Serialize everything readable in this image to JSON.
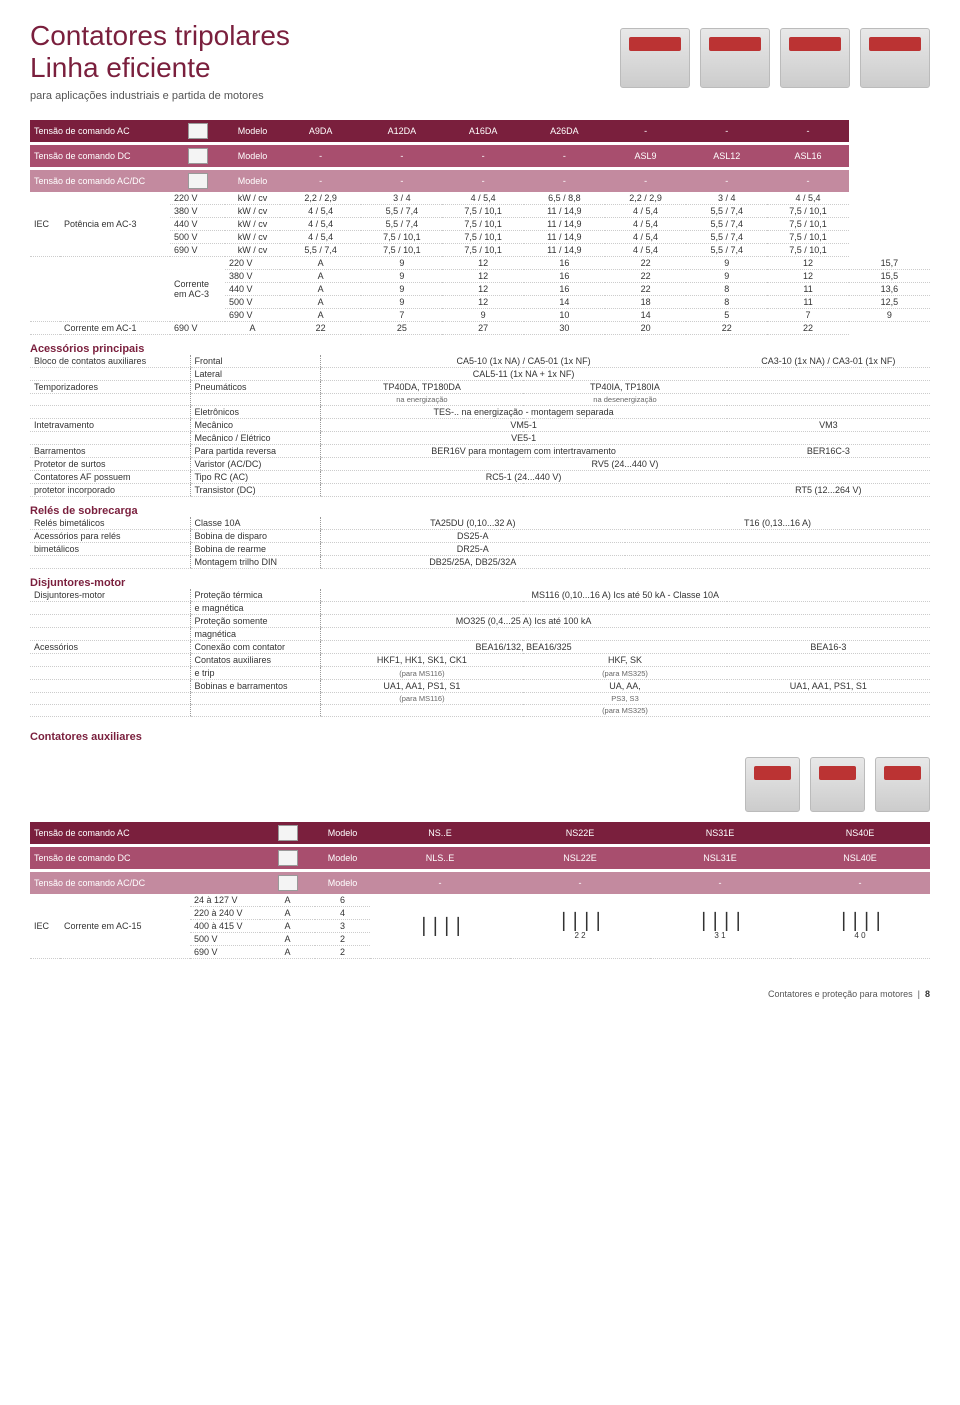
{
  "colors": {
    "brand": "#7a1f3d",
    "band_mid": "#a84e6e",
    "band_light": "#c38a9f",
    "text": "#333333",
    "background": "#ffffff",
    "border_dotted": "#cccccc"
  },
  "header": {
    "title_line1": "Contatores tripolares",
    "title_line2": "Linha eficiente",
    "subtitle": "para aplicações industriais e partida de motores"
  },
  "main_table": {
    "band_ac": {
      "label": "Tensão de comando AC",
      "col_model": "Modelo",
      "cols": [
        "A9DA",
        "A12DA",
        "A16DA",
        "A26DA",
        "-",
        "-",
        "-"
      ]
    },
    "band_dc": {
      "label": "Tensão de comando DC",
      "col_model": "Modelo",
      "cols": [
        "-",
        "-",
        "-",
        "-",
        "ASL9",
        "ASL12",
        "ASL16"
      ]
    },
    "band_acdc": {
      "label": "Tensão de comando AC/DC",
      "col_model": "Modelo",
      "cols": [
        "-",
        "-",
        "-",
        "-",
        "-",
        "-",
        "-"
      ]
    },
    "iec_label": "IEC",
    "pot_label": "Potência em AC-3",
    "pot_rows": [
      {
        "v": "220 V",
        "u": "kW / cv",
        "vals": [
          "2,2 / 2,9",
          "3 / 4",
          "4 / 5,4",
          "6,5 / 8,8",
          "2,2 / 2,9",
          "3 / 4",
          "4 / 5,4"
        ]
      },
      {
        "v": "380 V",
        "u": "kW / cv",
        "vals": [
          "4 / 5,4",
          "5,5 / 7,4",
          "7,5 / 10,1",
          "11 / 14,9",
          "4 / 5,4",
          "5,5 / 7,4",
          "7,5 / 10,1"
        ]
      },
      {
        "v": "440 V",
        "u": "kW / cv",
        "vals": [
          "4 / 5,4",
          "5,5 / 7,4",
          "7,5 / 10,1",
          "11 / 14,9",
          "4 / 5,4",
          "5,5 / 7,4",
          "7,5 / 10,1"
        ]
      },
      {
        "v": "500 V",
        "u": "kW / cv",
        "vals": [
          "4 / 5,4",
          "7,5 / 10,1",
          "7,5 / 10,1",
          "11 / 14,9",
          "4 / 5,4",
          "5,5 / 7,4",
          "7,5 / 10,1"
        ]
      },
      {
        "v": "690 V",
        "u": "kW / cv",
        "vals": [
          "5,5 / 7,4",
          "7,5 / 10,1",
          "7,5 / 10,1",
          "11 / 14,9",
          "4 / 5,4",
          "5,5 / 7,4",
          "7,5 / 10,1"
        ]
      }
    ],
    "cur3_label": "Corrente em AC-3",
    "cur3_rows": [
      {
        "v": "220 V",
        "u": "A",
        "vals": [
          "9",
          "12",
          "16",
          "22",
          "9",
          "12",
          "15,7"
        ]
      },
      {
        "v": "380 V",
        "u": "A",
        "vals": [
          "9",
          "12",
          "16",
          "22",
          "9",
          "12",
          "15,5"
        ]
      },
      {
        "v": "440 V",
        "u": "A",
        "vals": [
          "9",
          "12",
          "16",
          "22",
          "8",
          "11",
          "13,6"
        ]
      },
      {
        "v": "500 V",
        "u": "A",
        "vals": [
          "9",
          "12",
          "14",
          "18",
          "8",
          "11",
          "12,5"
        ]
      },
      {
        "v": "690 V",
        "u": "A",
        "vals": [
          "7",
          "9",
          "10",
          "14",
          "5",
          "7",
          "9"
        ]
      }
    ],
    "cur1_label": "Corrente em AC-1",
    "cur1_row": {
      "v": "690 V",
      "u": "A",
      "vals": [
        "22",
        "25",
        "27",
        "30",
        "20",
        "22",
        "22"
      ]
    }
  },
  "acessorios": {
    "title": "Acessórios principais",
    "rows": [
      {
        "name": "Bloco de contatos auxiliares",
        "spec": "Frontal",
        "left": "CA5-10 (1x NA) / CA5-01 (1x NF)",
        "right": "CA3-10 (1x NA) / CA3-01 (1x NF)"
      },
      {
        "name": "",
        "spec": "Lateral",
        "left": "CAL5-11 (1x NA + 1x NF)",
        "right": ""
      },
      {
        "name": "Temporizadores",
        "spec": "Pneumáticos",
        "left": "TP40DA, TP180DA",
        "left2": "TP40IA, TP180IA",
        "right": ""
      },
      {
        "name": "",
        "spec": "",
        "left": "na energização",
        "left2": "na desenergização",
        "right": "",
        "small": true
      },
      {
        "name": "",
        "spec": "Eletrônicos",
        "left": "TES-.. na energização - montagem separada",
        "right": ""
      },
      {
        "name": "Intetravamento",
        "spec": "Mecânico",
        "left": "VM5-1",
        "right": "VM3"
      },
      {
        "name": "",
        "spec": "Mecânico / Elétrico",
        "left": "VE5-1",
        "right": ""
      },
      {
        "name": "Barramentos",
        "spec": "Para partida reversa",
        "left": "BER16V para montagem com intertravamento",
        "right": "BER16C-3"
      },
      {
        "name": "Protetor de surtos",
        "spec": "Varistor (AC/DC)",
        "left": "",
        "left2": "RV5 (24...440 V)",
        "right": ""
      },
      {
        "name": "Contatores AF possuem",
        "spec": "Tipo RC (AC)",
        "left": "RC5-1 (24...440 V)",
        "right": ""
      },
      {
        "name": "protetor incorporado",
        "spec": "Transistor (DC)",
        "left": "",
        "right": "RT5 (12...264 V)"
      }
    ]
  },
  "reles": {
    "title": "Relés de sobrecarga",
    "rows": [
      {
        "name": "Relés bimetálicos",
        "spec": "Classe 10A",
        "left": "TA25DU (0,10...32 A)",
        "right": "T16 (0,13...16 A)"
      },
      {
        "name": "Acessórios para relés",
        "spec": "Bobina de disparo",
        "left": "DS25-A",
        "right": ""
      },
      {
        "name": "bimetálicos",
        "spec": "Bobina de rearme",
        "left": "DR25-A",
        "right": ""
      },
      {
        "name": "",
        "spec": "Montagem trilho DIN",
        "left": "DB25/25A, DB25/32A",
        "right": ""
      }
    ]
  },
  "disjuntores": {
    "title": "Disjuntores-motor",
    "rows": [
      {
        "name": "Disjuntores-motor",
        "spec": "Proteção térmica",
        "left": "",
        "left_wide": "MS116 (0,10...16 A) Ics até 50 kA - Classe 10A",
        "right": ""
      },
      {
        "name": "",
        "spec": "e magnética",
        "left": "",
        "right": ""
      },
      {
        "name": "",
        "spec": "Proteção somente",
        "left": "MO325 (0,4...25 A) Ics até 100 kA",
        "right": ""
      },
      {
        "name": "",
        "spec": "magnética",
        "left": "",
        "right": ""
      },
      {
        "name": "Acessórios",
        "spec": "Conexão com contator",
        "left": "BEA16/132, BEA16/325",
        "right": "BEA16-3"
      },
      {
        "name": "",
        "spec": "Contatos auxiliares",
        "left": "HKF1, HK1, SK1, CK1",
        "left2": "HKF, SK",
        "right": ""
      },
      {
        "name": "",
        "spec": "e trip",
        "left": "(para MS116)",
        "left2": "(para MS325)",
        "right": "",
        "small": true
      },
      {
        "name": "",
        "spec": "Bobinas e barramentos",
        "left": "UA1, AA1, PS1, S1",
        "left2": "UA, AA,",
        "right": "UA1, AA1, PS1, S1"
      },
      {
        "name": "",
        "spec": "",
        "left": "(para MS116)",
        "left2": "PS3, S3",
        "right": "",
        "small": true
      },
      {
        "name": "",
        "spec": "",
        "left": "",
        "left2": "(para MS325)",
        "right": "",
        "small": true
      }
    ]
  },
  "aux": {
    "title": "Contatores auxiliares",
    "band_ac": {
      "label": "Tensão de comando AC",
      "col_model": "Modelo",
      "cols": [
        "NS..E",
        "NS22E",
        "NS31E",
        "NS40E"
      ]
    },
    "band_dc": {
      "label": "Tensão de comando DC",
      "col_model": "Modelo",
      "cols": [
        "NLS..E",
        "NSL22E",
        "NSL31E",
        "NSL40E"
      ]
    },
    "band_acdc": {
      "label": "Tensão de comando AC/DC",
      "col_model": "Modelo",
      "cols": [
        "-",
        "-",
        "-",
        "-"
      ]
    },
    "iec_label": "IEC",
    "cur_label": "Corrente em AC-15",
    "rows": [
      {
        "v": "24 à 127 V",
        "u": "A",
        "val": "6"
      },
      {
        "v": "220 à 240 V",
        "u": "A",
        "val": "4"
      },
      {
        "v": "400 à 415 V",
        "u": "A",
        "val": "3"
      },
      {
        "v": "500 V",
        "u": "A",
        "val": "2"
      },
      {
        "v": "690 V",
        "u": "A",
        "val": "2"
      }
    ],
    "contact_labels": [
      "2   2",
      "3   1",
      "4   0"
    ]
  },
  "footer": {
    "text": "Contatores e proteção para motores",
    "page": "8"
  }
}
